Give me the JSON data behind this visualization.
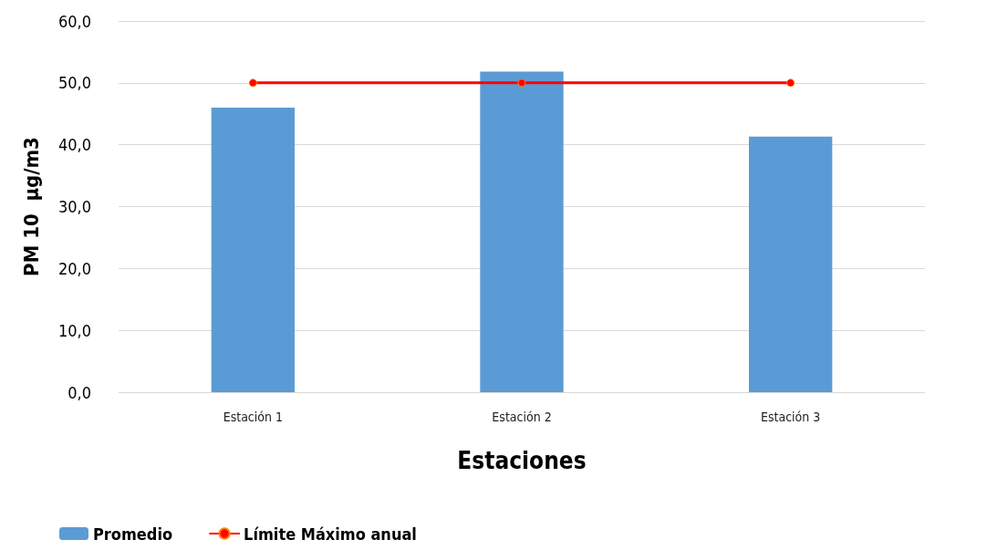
{
  "chart_data": {
    "type": "bar",
    "xlabel": "Estaciones",
    "ylabel": "PM 10  µg/m3",
    "categories": [
      "Estación 1",
      "Estación 2",
      "Estación 3"
    ],
    "series": [
      {
        "name": "Promedio",
        "color": "#5b9bd5",
        "values": [
          46.0,
          51.8,
          41.3
        ]
      },
      {
        "name": "Límite Máximo anual",
        "type": "line",
        "color": "#ff0000",
        "values": [
          50,
          50,
          50
        ]
      }
    ],
    "ylim": [
      0,
      60
    ],
    "yticks": [
      {
        "value": 0,
        "label": "0,0"
      },
      {
        "value": 10,
        "label": "10,0"
      },
      {
        "value": 20,
        "label": "20,0"
      },
      {
        "value": 30,
        "label": "30,0"
      },
      {
        "value": 40,
        "label": "40,0"
      },
      {
        "value": 50,
        "label": "50,0"
      },
      {
        "value": 60,
        "label": "60,0"
      }
    ],
    "grid": "y",
    "legend": "bottom left",
    "marker": "circle",
    "line_style": "solid"
  }
}
